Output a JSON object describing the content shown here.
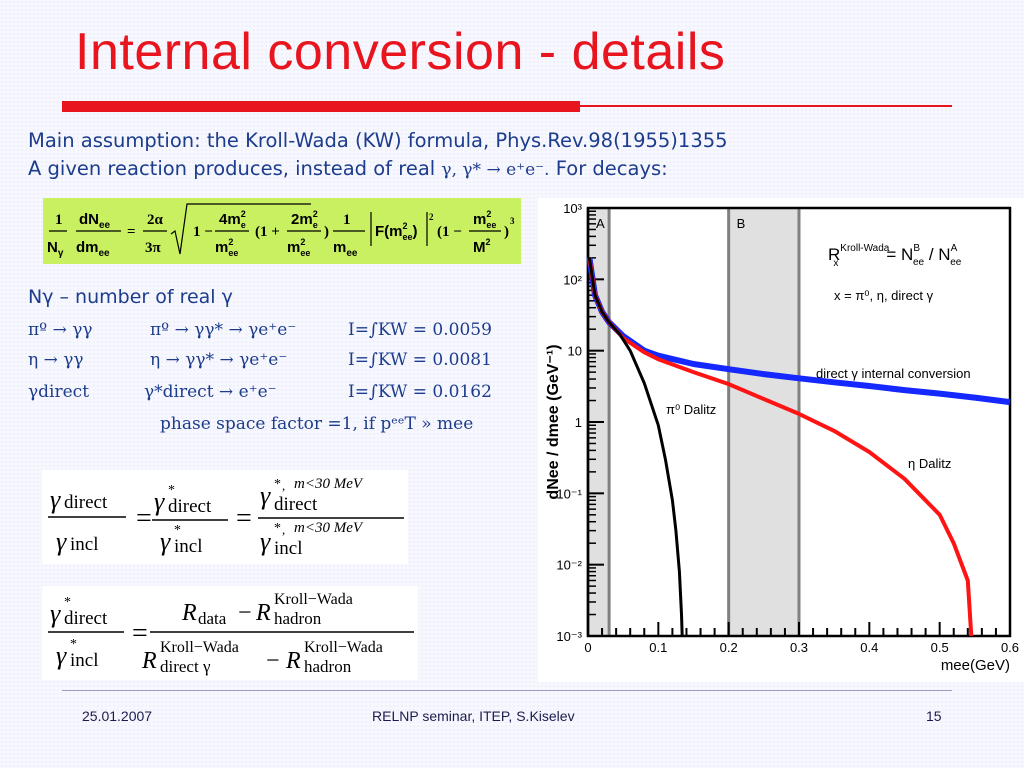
{
  "slide": {
    "title": "Internal conversion  - details",
    "intro_line1": "Main assumption: the Kroll-Wada (KW) formula, Phys.Rev.98(1955)1355",
    "intro_line2_a": "A given reaction produces, instead of real ",
    "intro_line2_sym": "γ, γ* → e⁺e⁻.",
    "intro_line2_b": " For decays:"
  },
  "kw_formula": {
    "lhs_num": "dN",
    "lhs_den": "dm",
    "rest": "F(m²ee)",
    "one": "1",
    "n_gamma": "Nγ"
  },
  "definitions": {
    "ngamma_label": "Nγ – number of real γ",
    "rows": [
      {
        "decay": "πº → γγ",
        "conv": "πº → γγ* → γe⁺e⁻",
        "integral": "I=∫KW = 0.0059"
      },
      {
        "decay": "η  → γγ",
        "conv": "η → γγ* → γe⁺e⁻",
        "integral": "I=∫KW = 0.0081"
      },
      {
        "decay": "γdirect",
        "conv": "γ*direct → e⁺e⁻",
        "integral": "I=∫KW = 0.0162"
      }
    ],
    "phase_space": "phase space factor =1, if pᵉᵉT » mee"
  },
  "eq1": {
    "cut_top": "m<30 MeV",
    "cut_bottom": "m<30 MeV"
  },
  "eq2": {
    "r_data": "R",
    "sub_data": "data",
    "kw_label": "Kroll−Wada",
    "sub_hadron": "hadron",
    "sub_direct": "direct γ"
  },
  "chart_data": {
    "type": "line",
    "ylabel": "dNee / dmee  (GeV⁻¹)",
    "xlabel": "mee(GeV)",
    "xlim": [
      0,
      0.6
    ],
    "ylim_log10": [
      -3,
      3
    ],
    "x_ticks": [
      "0",
      "0.1",
      "0.2",
      "0.3",
      "0.4",
      "0.5",
      "0.6"
    ],
    "y_ticks": [
      "10⁻³",
      "10⁻²",
      "10⁻¹",
      "1",
      "10",
      "10²",
      "10³"
    ],
    "bands": [
      {
        "label": "A",
        "x0": 0.0,
        "x1": 0.03
      },
      {
        "label": "B",
        "x0": 0.2,
        "x1": 0.3
      }
    ],
    "annotations": {
      "ratio": "R",
      "ratio_sup": "Kroll-Wada",
      "ratio_sub": "x",
      "ratio_rhs": "= N",
      "ratio_b_sup": "B",
      "ratio_b_sub": "ee",
      "ratio_div": " / N",
      "ratio_a_sup": "A",
      "ratio_a_sub": "ee",
      "sources": "x = π⁰, η, direct γ",
      "direct": "direct γ internal conversion",
      "pi0": "π⁰ Dalitz",
      "eta": "η Dalitz"
    },
    "series": [
      {
        "name": "direct γ internal conversion",
        "color": "#1428ff",
        "points": [
          [
            0.002,
            200
          ],
          [
            0.01,
            60
          ],
          [
            0.02,
            35
          ],
          [
            0.03,
            25
          ],
          [
            0.05,
            16
          ],
          [
            0.08,
            10
          ],
          [
            0.1,
            8.5
          ],
          [
            0.15,
            6.5
          ],
          [
            0.2,
            5.5
          ],
          [
            0.25,
            4.7
          ],
          [
            0.3,
            4.1
          ],
          [
            0.35,
            3.6
          ],
          [
            0.4,
            3.2
          ],
          [
            0.45,
            2.8
          ],
          [
            0.5,
            2.5
          ],
          [
            0.55,
            2.2
          ],
          [
            0.6,
            1.9
          ]
        ]
      },
      {
        "name": "η Dalitz",
        "color": "#ff1414",
        "points": [
          [
            0.002,
            200
          ],
          [
            0.01,
            60
          ],
          [
            0.02,
            35
          ],
          [
            0.03,
            25
          ],
          [
            0.05,
            15
          ],
          [
            0.08,
            9.5
          ],
          [
            0.1,
            7.6
          ],
          [
            0.15,
            5.0
          ],
          [
            0.2,
            3.4
          ],
          [
            0.25,
            2.1
          ],
          [
            0.3,
            1.3
          ],
          [
            0.35,
            0.75
          ],
          [
            0.4,
            0.38
          ],
          [
            0.45,
            0.16
          ],
          [
            0.5,
            0.05
          ],
          [
            0.52,
            0.02
          ],
          [
            0.54,
            0.006
          ],
          [
            0.545,
            0.001
          ]
        ]
      },
      {
        "name": "π⁰ Dalitz",
        "color": "#000000",
        "points": [
          [
            0.002,
            200
          ],
          [
            0.01,
            60
          ],
          [
            0.02,
            35
          ],
          [
            0.03,
            25
          ],
          [
            0.045,
            17
          ],
          [
            0.06,
            10
          ],
          [
            0.08,
            3.5
          ],
          [
            0.1,
            0.9
          ],
          [
            0.11,
            0.3
          ],
          [
            0.12,
            0.08
          ],
          [
            0.125,
            0.03
          ],
          [
            0.13,
            0.008
          ],
          [
            0.133,
            0.002
          ],
          [
            0.134,
            0.001
          ]
        ]
      }
    ]
  },
  "footer": {
    "date": "25.01.2007",
    "center": "RELNP seminar,  ITEP,  S.Kiselev",
    "page": "15"
  },
  "colors": {
    "accent": "#e8141e",
    "text": "#1c3c8c",
    "formula_bg": "#c8f060"
  }
}
